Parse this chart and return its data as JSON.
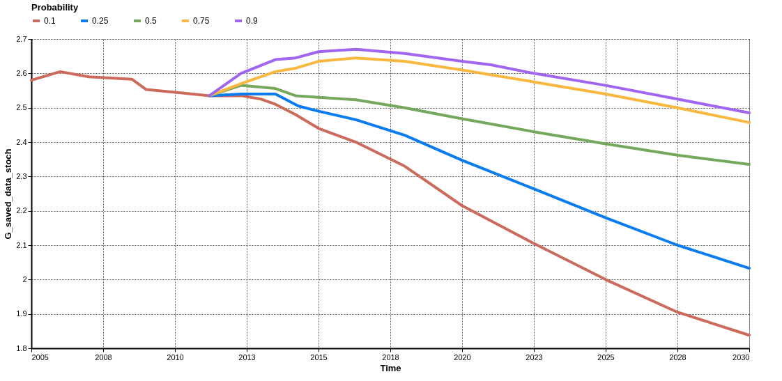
{
  "chart_data": {
    "type": "line",
    "xlabel": "Time",
    "ylabel": "G_saved_data_stoch",
    "legend_title": "Probability",
    "legend": "top",
    "grid": true,
    "line_style": "solid",
    "marker": "none",
    "xlim": [
      2005,
      2030
    ],
    "xticks": [
      2005,
      {
        "value": 2007.5,
        "label": "2008"
      },
      2010,
      {
        "value": 2012.5,
        "label": "2013"
      },
      2015,
      {
        "value": 2017.5,
        "label": "2018"
      },
      2020,
      {
        "value": 2022.5,
        "label": "2023"
      },
      2025,
      {
        "value": 2027.5,
        "label": "2028"
      },
      2030
    ],
    "ylim": [
      1.8,
      2.7
    ],
    "yticks": [
      {
        "value": 1.8,
        "label": "1.8"
      },
      {
        "value": 1.9,
        "label": "1.9"
      },
      2,
      {
        "value": 2.1,
        "label": "2.1"
      },
      {
        "value": 2.2,
        "label": "2.2"
      },
      {
        "value": 2.3,
        "label": "2.3"
      },
      {
        "value": 2.4,
        "label": "2.4"
      },
      {
        "value": 2.5,
        "label": "2.5"
      },
      {
        "value": 2.6,
        "label": "2.6"
      },
      {
        "value": 2.7,
        "label": "2.7"
      }
    ],
    "series": [
      {
        "name": "0.1",
        "color": "#cc6a5c",
        "x": [
          2005,
          2006,
          2007,
          2008.5,
          2009,
          2010,
          2011.2,
          2012.3,
          2013,
          2013.5,
          2014.2,
          2015,
          2016.3,
          2018,
          2020,
          2022.5,
          2025,
          2027.5,
          2030
        ],
        "values": [
          2.58,
          2.605,
          2.59,
          2.583,
          2.553,
          2.545,
          2.535,
          2.535,
          2.525,
          2.51,
          2.48,
          2.44,
          2.4,
          2.33,
          2.215,
          2.105,
          2.0,
          1.905,
          1.838
        ]
      },
      {
        "name": "0.25",
        "color": "#0a7cf0",
        "x": [
          2011.2,
          2012.3,
          2013.5,
          2014.3,
          2015,
          2016.3,
          2018,
          2020,
          2022.5,
          2025,
          2027.5,
          2030
        ],
        "values": [
          2.535,
          2.54,
          2.54,
          2.505,
          2.49,
          2.465,
          2.42,
          2.347,
          2.264,
          2.18,
          2.1,
          2.033
        ]
      },
      {
        "name": "0.5",
        "color": "#74a95d",
        "x": [
          2011.2,
          2012.3,
          2013.5,
          2014.2,
          2015,
          2016.3,
          2018,
          2020,
          2022.5,
          2025,
          2027.5,
          2030
        ],
        "values": [
          2.535,
          2.565,
          2.556,
          2.535,
          2.53,
          2.523,
          2.5,
          2.468,
          2.43,
          2.395,
          2.362,
          2.335
        ]
      },
      {
        "name": "0.75",
        "color": "#f8b840",
        "x": [
          2011.2,
          2012.3,
          2013.5,
          2014.2,
          2015,
          2016.3,
          2018,
          2020,
          2022.5,
          2025,
          2027.5,
          2030
        ],
        "values": [
          2.535,
          2.57,
          2.605,
          2.615,
          2.635,
          2.645,
          2.635,
          2.61,
          2.575,
          2.54,
          2.5,
          2.457
        ]
      },
      {
        "name": "0.9",
        "color": "#a066f0",
        "x": [
          2011.2,
          2012.3,
          2013.5,
          2014.2,
          2015,
          2016.3,
          2018,
          2020,
          2021,
          2022.5,
          2025,
          2027.5,
          2030
        ],
        "values": [
          2.535,
          2.6,
          2.64,
          2.645,
          2.663,
          2.67,
          2.658,
          2.635,
          2.625,
          2.6,
          2.565,
          2.525,
          2.485
        ]
      }
    ]
  }
}
